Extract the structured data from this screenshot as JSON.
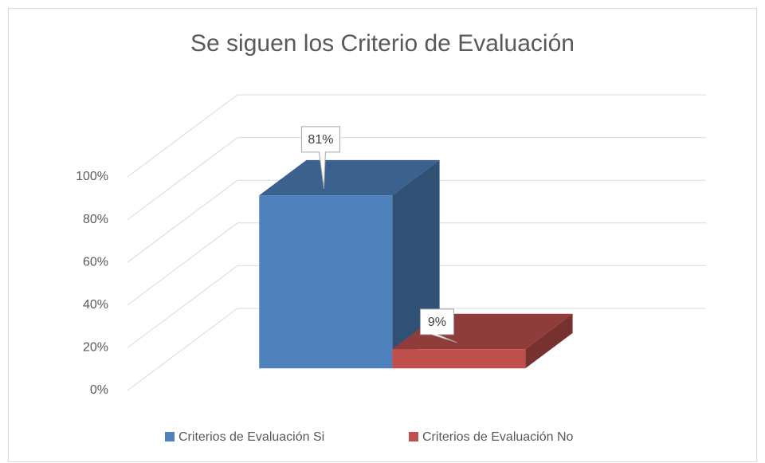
{
  "chart_data": {
    "type": "bar",
    "title": "Se siguen los Criterio de Evaluación",
    "categories": [
      null
    ],
    "series": [
      {
        "name": "Criterios de Evaluación Si",
        "color": "#4f81bd",
        "values": [
          81
        ],
        "value_labels": [
          "81%"
        ]
      },
      {
        "name": "Criterios de Evaluación No",
        "color": "#c0504d",
        "values": [
          9
        ],
        "value_labels": [
          "9%"
        ]
      }
    ],
    "ylim": [
      0,
      100
    ],
    "yticks": [
      {
        "value": 0,
        "label": "0%"
      },
      {
        "value": 20,
        "label": "20%"
      },
      {
        "value": 40,
        "label": "40%"
      },
      {
        "value": 60,
        "label": "60%"
      },
      {
        "value": 80,
        "label": "80%"
      },
      {
        "value": 100,
        "label": "100%"
      }
    ],
    "grid": true,
    "legend": "bottom"
  }
}
